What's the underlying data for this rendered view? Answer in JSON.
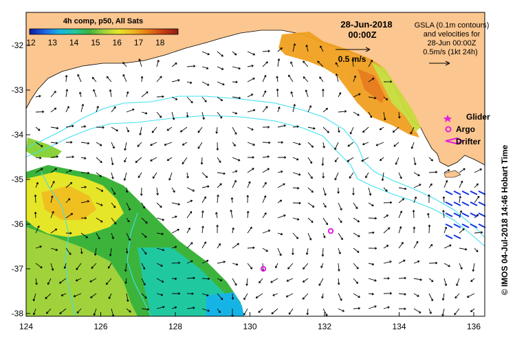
{
  "map": {
    "title_date": "28-Jun-2018",
    "title_time": "00:00Z",
    "colorbar_title": "4h comp, p50, All Sats",
    "colorbar_ticks": [
      "12",
      "13",
      "14",
      "15",
      "16",
      "17",
      "18"
    ],
    "colorbar_colors": [
      "#0a1aa0",
      "#1e64e6",
      "#16b4e6",
      "#20c8a0",
      "#3cb43c",
      "#a0d23c",
      "#e6e628",
      "#f0b41e",
      "#e67814",
      "#c83c14",
      "#8c1e14"
    ],
    "legend_lines": [
      "GSLA (0.1m contours)",
      "and velocities for",
      "28-Jun 00:00Z",
      "0.5m/s (1kt 24h)"
    ],
    "scale_arrow_label": "0.5 m/s",
    "markers": [
      {
        "label": "Glider",
        "color": "#e020e0"
      },
      {
        "label": "Argo",
        "color": "#e020e0"
      },
      {
        "label": "Drifter",
        "color": "#e020e0"
      }
    ],
    "side_text": "© IMOS 04-Jul-2018 14:46 Hobart Time",
    "x_ticks": [
      "124",
      "126",
      "128",
      "130",
      "132",
      "134",
      "136"
    ],
    "y_ticks": [
      "-32",
      "-33",
      "-34",
      "-35",
      "-36",
      "-37",
      "-38"
    ],
    "land_color": "#fbc68f",
    "contour_color": "#40e0f0"
  }
}
